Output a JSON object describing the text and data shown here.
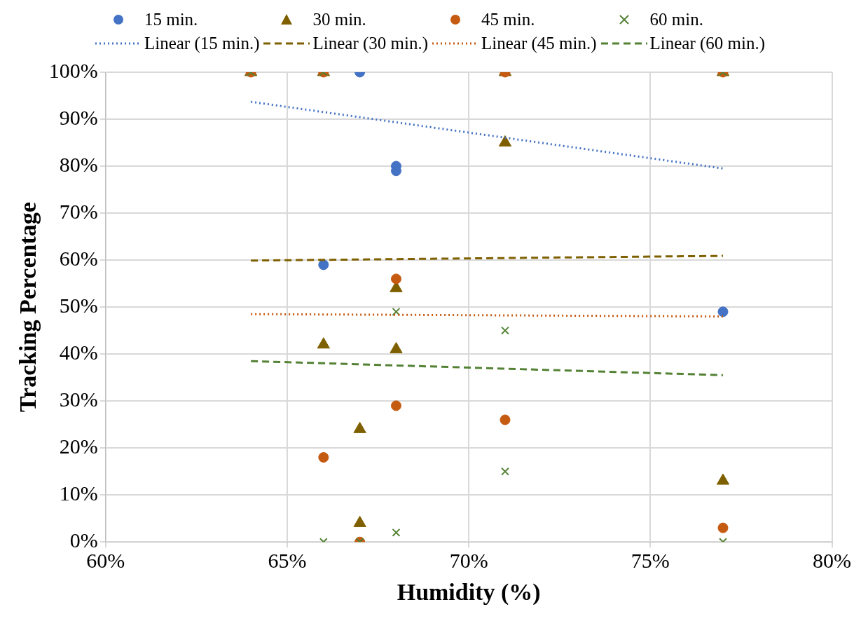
{
  "chart_data": {
    "type": "scatter",
    "xlabel": "Humidity (%)",
    "ylabel": "Tracking Percentage",
    "legend": "top",
    "grid": true,
    "xlim": [
      60,
      80
    ],
    "xticks": [
      {
        "value": 60,
        "label": "60%"
      },
      {
        "value": 65,
        "label": "65%"
      },
      {
        "value": 70,
        "label": "70%"
      },
      {
        "value": 75,
        "label": "75%"
      },
      {
        "value": 80,
        "label": "80%"
      }
    ],
    "ylim": [
      0,
      100
    ],
    "yticks": [
      {
        "value": 0,
        "label": "0%"
      },
      {
        "value": 10,
        "label": "10%"
      },
      {
        "value": 20,
        "label": "20%"
      },
      {
        "value": 30,
        "label": "30%"
      },
      {
        "value": 40,
        "label": "40%"
      },
      {
        "value": 50,
        "label": "50%"
      },
      {
        "value": 60,
        "label": "60%"
      },
      {
        "value": 70,
        "label": "70%"
      },
      {
        "value": 80,
        "label": "80%"
      },
      {
        "value": 90,
        "label": "90%"
      },
      {
        "value": 100,
        "label": "100%"
      }
    ],
    "series": [
      {
        "name": "15 min.",
        "marker": "circle",
        "color": "#4472c4",
        "x": [
          67,
          68,
          68,
          66,
          77
        ],
        "values": [
          100,
          80,
          79,
          59,
          49
        ]
      },
      {
        "name": "30 min.",
        "marker": "triangle",
        "color": "#7f6000",
        "x": [
          64,
          66,
          71,
          77,
          71,
          68,
          66,
          68,
          67,
          67,
          77
        ],
        "values": [
          100,
          100,
          100,
          100,
          85,
          54,
          42,
          41,
          24,
          4,
          13
        ]
      },
      {
        "name": "45 min.",
        "marker": "circle",
        "color": "#c55a11",
        "x": [
          64,
          66,
          71,
          77,
          68,
          68,
          66,
          71,
          67,
          77
        ],
        "values": [
          100,
          100,
          100,
          100,
          56,
          29,
          18,
          26,
          0,
          3
        ]
      },
      {
        "name": "60 min.",
        "marker": "cross",
        "color": "#548235",
        "x": [
          64,
          66,
          77,
          68,
          71,
          71,
          66,
          67,
          68,
          77
        ],
        "values": [
          100,
          100,
          100,
          49,
          45,
          15,
          0,
          0,
          2,
          0
        ]
      },
      {
        "name": "Linear (15 min.)",
        "type": "line",
        "line_style": "dotted",
        "color": "#4472c4",
        "x": [
          64,
          77
        ],
        "values": [
          93.7,
          79.5
        ]
      },
      {
        "name": "Linear (30 min.)",
        "type": "line",
        "line_style": "dashed",
        "color": "#7f6000",
        "x": [
          64,
          77
        ],
        "values": [
          59.9,
          60.9
        ]
      },
      {
        "name": "Linear (45 min.)",
        "type": "line",
        "line_style": "dotted",
        "color": "#c55a11",
        "x": [
          64,
          77
        ],
        "values": [
          48.5,
          48.0
        ]
      },
      {
        "name": "Linear (60 min.)",
        "type": "line",
        "line_style": "dashed",
        "color": "#548235",
        "x": [
          64,
          77
        ],
        "values": [
          38.5,
          35.5
        ]
      }
    ]
  }
}
